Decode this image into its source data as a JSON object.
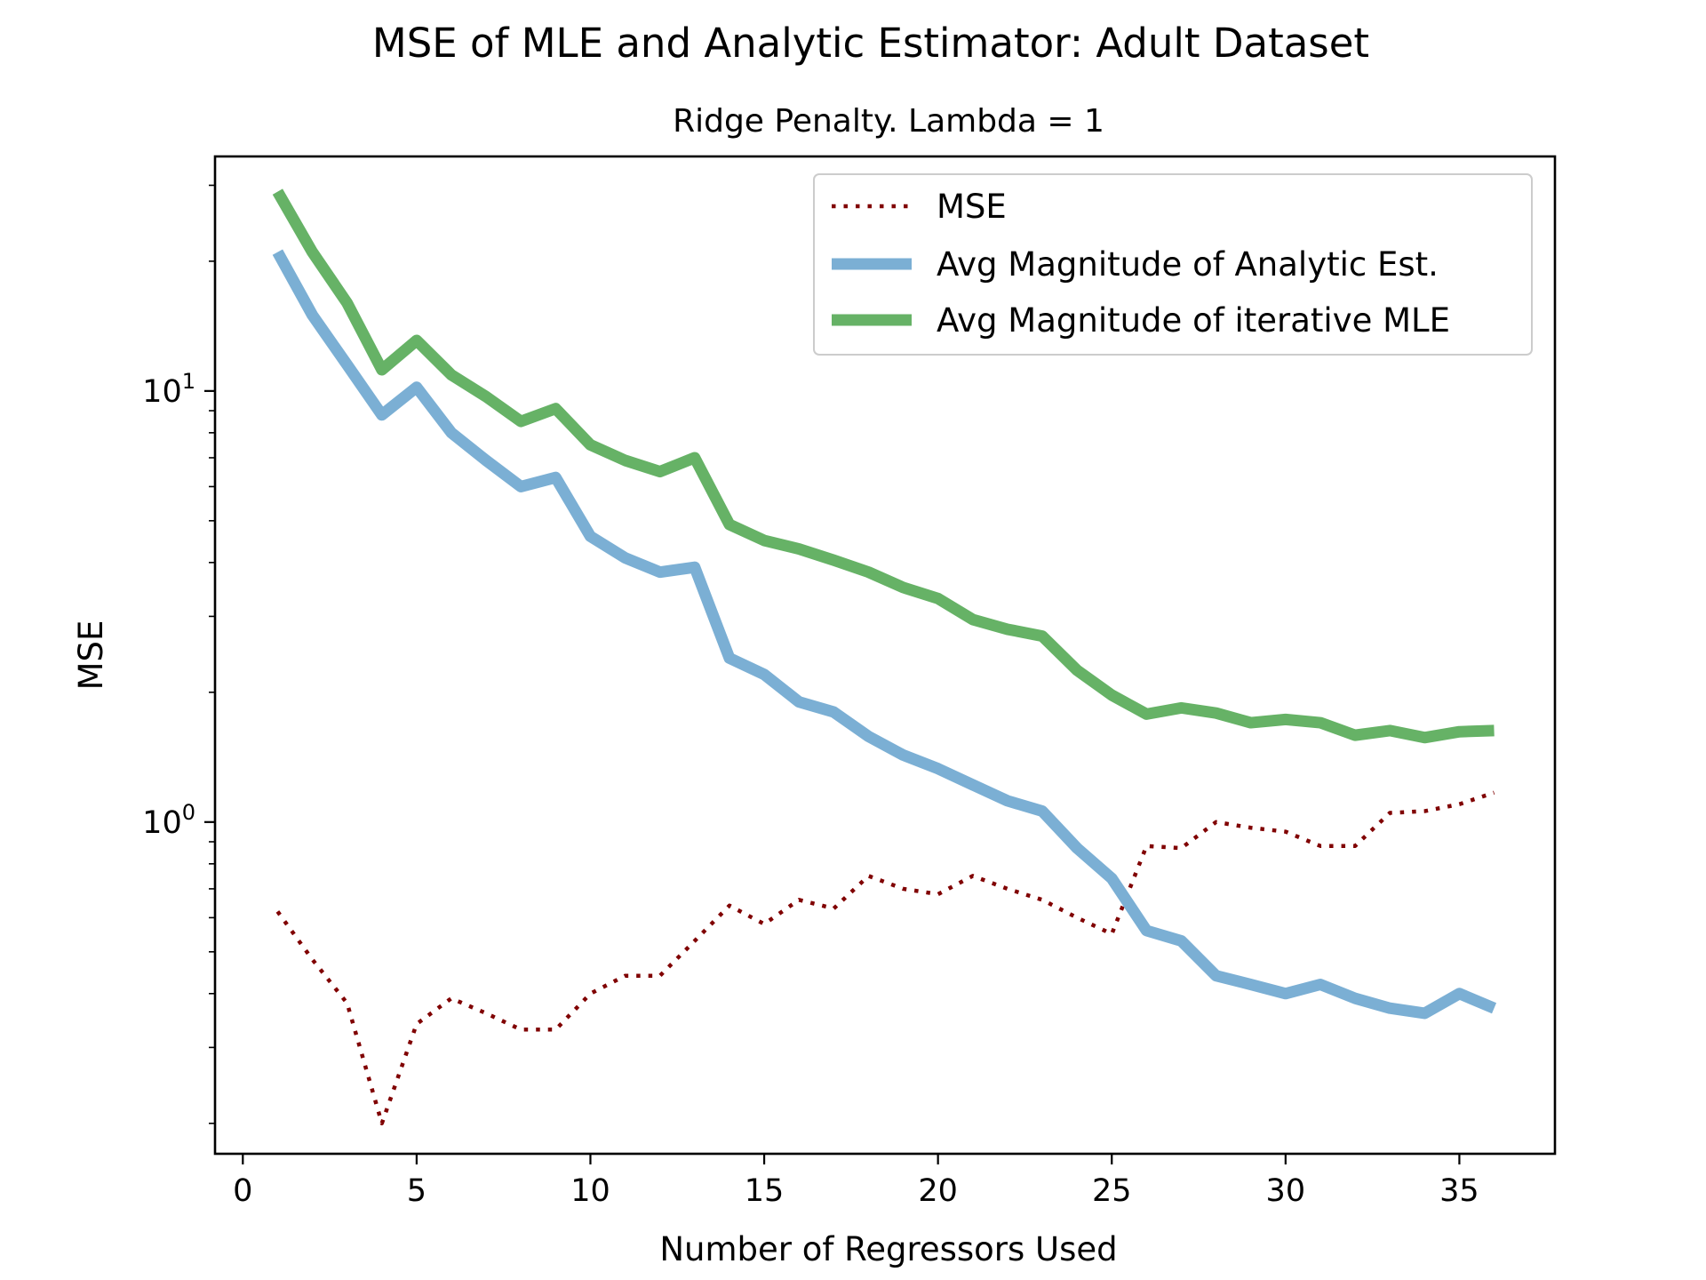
{
  "chart_data": {
    "type": "line",
    "title": "MSE of MLE and Analytic Estimator: Adult Dataset",
    "subtitle": "Ridge Penalty. Lambda = 1",
    "xlabel": "Number of Regressors Used",
    "ylabel": "MSE",
    "xlim": [
      -0.8,
      37.75
    ],
    "ylim": [
      0.17,
      35
    ],
    "yscale": "log",
    "x_ticks": [
      0,
      5,
      10,
      15,
      20,
      25,
      30,
      35
    ],
    "x_tick_labels": [
      "0",
      "5",
      "10",
      "15",
      "20",
      "25",
      "30",
      "35"
    ],
    "y_ticks": [
      {
        "value": 1,
        "base": "10",
        "exp": "0"
      },
      {
        "value": 10,
        "base": "10",
        "exp": "1"
      }
    ],
    "y_minor_ticks": [
      0.2,
      0.3,
      0.4,
      0.5,
      0.6,
      0.7,
      0.8,
      0.9,
      2,
      3,
      4,
      5,
      6,
      7,
      8,
      9,
      20,
      30
    ],
    "grid": false,
    "legend_position": "top-right",
    "x": [
      1,
      2,
      3,
      4,
      5,
      6,
      7,
      8,
      9,
      10,
      11,
      12,
      13,
      14,
      15,
      16,
      17,
      18,
      19,
      20,
      21,
      22,
      23,
      24,
      25,
      26,
      27,
      28,
      29,
      30,
      31,
      32,
      33,
      34,
      35,
      36
    ],
    "series": [
      {
        "name": "MSE",
        "color": "#800000",
        "style": "dotted",
        "values": [
          0.62,
          0.48,
          0.38,
          0.2,
          0.34,
          0.39,
          0.36,
          0.33,
          0.33,
          0.4,
          0.44,
          0.44,
          0.53,
          0.64,
          0.58,
          0.66,
          0.63,
          0.75,
          0.7,
          0.68,
          0.75,
          0.7,
          0.66,
          0.6,
          0.55,
          0.88,
          0.87,
          1.0,
          0.97,
          0.95,
          0.88,
          0.88,
          1.05,
          1.06,
          1.1,
          1.17
        ]
      },
      {
        "name": "Avg Magnitude of Analytic Est.",
        "color": "#7bafd4",
        "style": "solid",
        "values": [
          21,
          15,
          11.5,
          8.8,
          10.2,
          8.0,
          6.9,
          6.0,
          6.3,
          4.6,
          4.1,
          3.8,
          3.9,
          2.4,
          2.2,
          1.9,
          1.8,
          1.58,
          1.43,
          1.33,
          1.22,
          1.12,
          1.06,
          0.87,
          0.74,
          0.56,
          0.53,
          0.44,
          0.42,
          0.4,
          0.42,
          0.39,
          0.37,
          0.36,
          0.4,
          0.37
        ]
      },
      {
        "name": "Avg Magnitude of iterative MLE",
        "color": "#66b266",
        "style": "solid",
        "values": [
          29,
          21,
          16,
          11.2,
          13.1,
          10.9,
          9.7,
          8.5,
          9.1,
          7.5,
          6.9,
          6.5,
          7.0,
          4.9,
          4.5,
          4.3,
          4.05,
          3.8,
          3.5,
          3.3,
          2.95,
          2.8,
          2.7,
          2.25,
          1.97,
          1.78,
          1.84,
          1.79,
          1.7,
          1.73,
          1.7,
          1.59,
          1.63,
          1.57,
          1.62,
          1.63
        ]
      }
    ]
  }
}
